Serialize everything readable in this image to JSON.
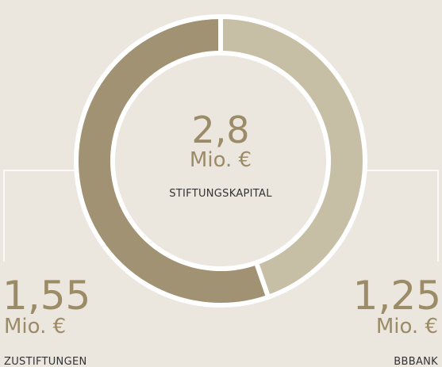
{
  "chart_data": {
    "type": "donut",
    "categories": [
      "ZUSTIFTUNGEN",
      "BBBANK"
    ],
    "values": [
      1.55,
      1.25
    ],
    "value_labels": [
      "1,55",
      "1,25"
    ],
    "unit": "Mio. €",
    "colors": [
      "#a09272",
      "#c7bea6"
    ],
    "total": {
      "value": 2.8,
      "label": "2,8",
      "name": "STIFTUNGSKAPITAL"
    }
  }
}
